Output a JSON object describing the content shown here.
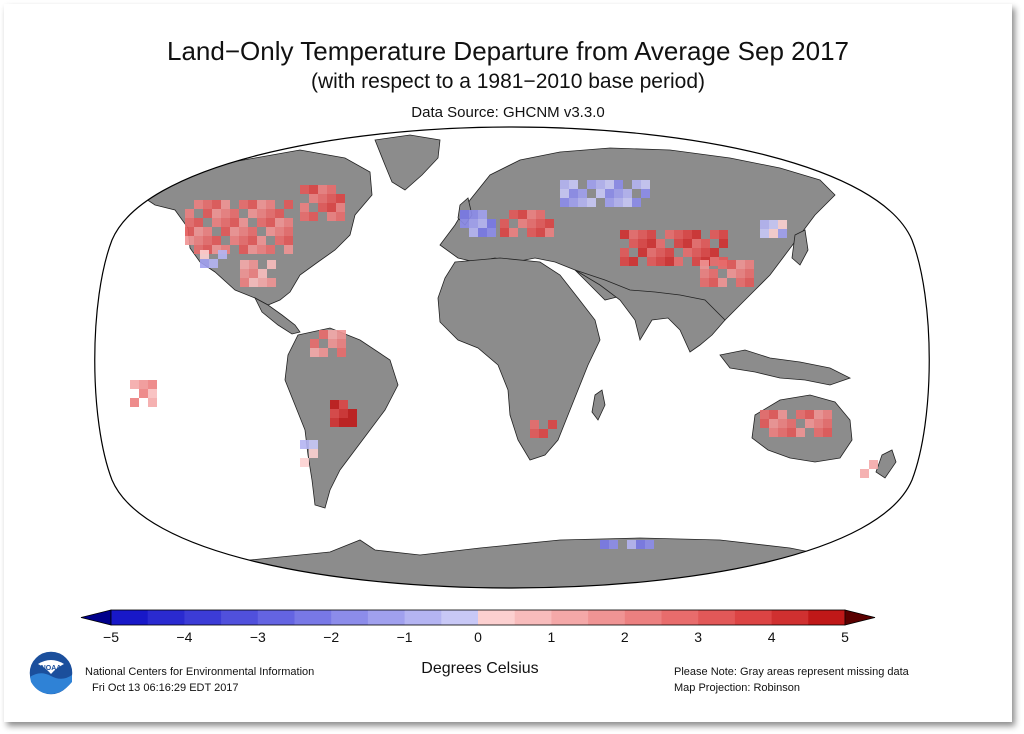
{
  "header": {
    "title": "Land−Only Temperature Departure from Average Sep 2017",
    "subtitle": "(with respect to a 1981−2010 base period)",
    "source": "Data Source: GHCNM v3.3.0"
  },
  "footer": {
    "units": "Degrees Celsius",
    "organization": "National Centers for Environmental Information",
    "timestamp": "Fri Oct 13 06:16:29 EDT 2017",
    "note": "Please Note: Gray areas represent missing data",
    "projection": "Map Projection: Robinson"
  },
  "logo": {
    "text": "NOAA"
  },
  "map": {
    "projection": "Robinson",
    "land_color": "#8c8c8c",
    "ocean_color": "#ffffff",
    "missing_data_color": "#8c8c8c"
  },
  "legend": {
    "range": [
      -5,
      5
    ],
    "step": 0.5,
    "ticks": [
      "−5",
      "−4",
      "−3",
      "−2",
      "−1",
      "0",
      "1",
      "2",
      "3",
      "4",
      "5"
    ],
    "under_color": "#00008b",
    "over_color": "#5a0000",
    "colors": [
      "#1818c8",
      "#2a2ad0",
      "#3c3cd6",
      "#5050dc",
      "#6464e2",
      "#7878e6",
      "#8c8cea",
      "#a0a0ee",
      "#b4b4f2",
      "#c8c8f6",
      "#fcd0d0",
      "#f8bcbc",
      "#f4a8a8",
      "#f09494",
      "#ec8080",
      "#e86c6c",
      "#e25858",
      "#dc4444",
      "#d03030",
      "#c01818"
    ]
  }
}
